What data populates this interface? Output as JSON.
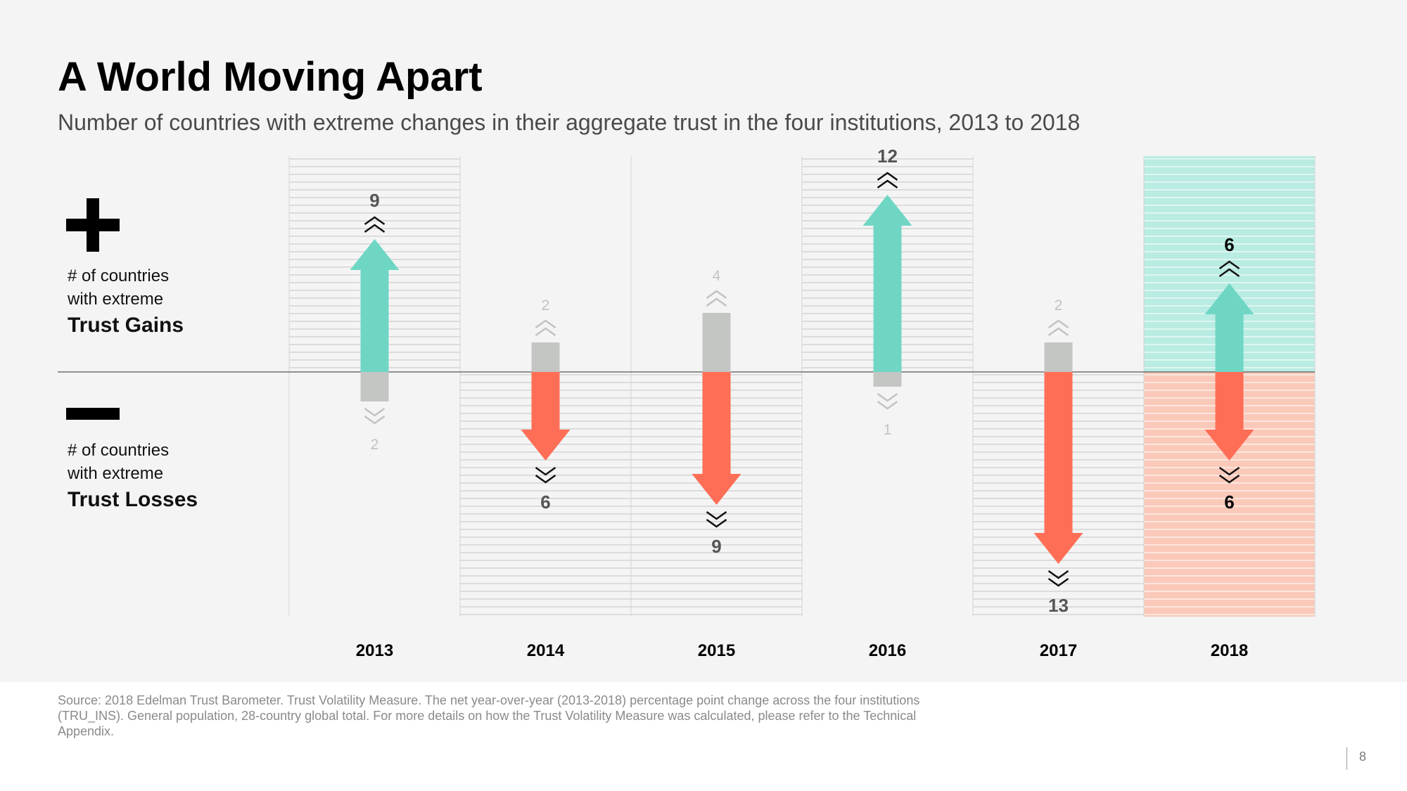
{
  "title": "A World Moving Apart",
  "subtitle": "Number of countries with extreme changes in their aggregate trust in the four institutions, 2013 to 2018",
  "legend": {
    "plus_icon": "plus-icon",
    "minus_icon": "minus-icon",
    "gains_line1": "# of countries",
    "gains_line2": "with extreme",
    "gains_label": "Trust Gains",
    "losses_line1": "# of countries",
    "losses_line2": "with extreme",
    "losses_label": "Trust Losses"
  },
  "colors": {
    "gain": "#6fd6c4",
    "loss": "#fe6e56",
    "muted": "#c4c6c4",
    "gain_bg": "#b9ece2",
    "loss_bg": "#fbc9b9",
    "stripe": "#dcdcdc"
  },
  "chart_data": {
    "type": "bar",
    "categories": [
      "2013",
      "2014",
      "2015",
      "2016",
      "2017",
      "2018"
    ],
    "series": [
      {
        "name": "Trust Gains",
        "values": [
          9,
          2,
          4,
          12,
          2,
          6
        ]
      },
      {
        "name": "Trust Losses",
        "values": [
          2,
          6,
          9,
          1,
          13,
          6
        ]
      }
    ],
    "dominant": [
      "gains",
      "losses",
      "losses",
      "gains",
      "losses",
      "equal"
    ],
    "highlight_category": "2018",
    "ylim": [
      -13,
      12
    ],
    "grid": false
  },
  "footer": {
    "source": "Source: 2018 Edelman Trust Barometer. Trust Volatility Measure. The net year-over-year (2013-2018) percentage point change across the four institutions (TRU_INS). General population, 28-country global total. For more details on how the Trust Volatility Measure was calculated, please refer to the Technical Appendix.",
    "page_number": "8"
  }
}
